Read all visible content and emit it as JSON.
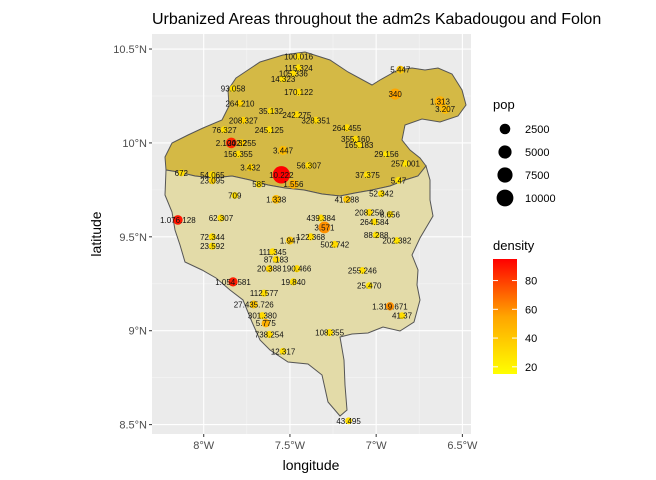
{
  "chart_data": {
    "type": "scatter",
    "title": "Urbanized Areas throughout the adm2s Kabadougou and Folon",
    "xlabel": "longitude",
    "ylabel": "latitude",
    "xlim": [
      -8.3,
      -6.45
    ],
    "ylim": [
      8.45,
      10.58
    ],
    "x_ticks": [
      -8,
      -7.5,
      -7,
      -6.5
    ],
    "x_tick_labels": [
      "8°W",
      "7.5°W",
      "7°W",
      "6.5°W"
    ],
    "y_ticks": [
      8.5,
      9,
      9.5,
      10,
      10.5
    ],
    "y_tick_labels": [
      "8.5°N",
      "9°N",
      "9.5°N",
      "10°N",
      "10.5°N"
    ],
    "grid": true,
    "regions": [
      {
        "name": "north",
        "fill": "#d4b945"
      },
      {
        "name": "south",
        "fill": "#e3dba8"
      }
    ],
    "legend_pop": {
      "title": "pop",
      "breaks": [
        2500,
        5000,
        7500,
        10000
      ],
      "labels": [
        "2500",
        "5000",
        "7500",
        "10000"
      ]
    },
    "legend_density": {
      "title": "density",
      "breaks": [
        20,
        40,
        60,
        80
      ],
      "labels": [
        "20",
        "40",
        "60",
        "80"
      ],
      "range": [
        15,
        95
      ],
      "color_low": "#ffff00",
      "color_mid": "#ffa500",
      "color_high": "#ff0000"
    },
    "points": [
      {
        "label": "100.016",
        "x": -7.45,
        "y": 10.46,
        "pop": 400,
        "density": 30
      },
      {
        "label": "115.324",
        "x": -7.45,
        "y": 10.4,
        "pop": 400,
        "density": 30
      },
      {
        "label": "105.336",
        "x": -7.48,
        "y": 10.37,
        "pop": 400,
        "density": 30
      },
      {
        "label": "14.323",
        "x": -7.54,
        "y": 10.34,
        "pop": 400,
        "density": 30
      },
      {
        "label": "93.058",
        "x": -7.83,
        "y": 10.29,
        "pop": 400,
        "density": 30
      },
      {
        "label": "170.122",
        "x": -7.45,
        "y": 10.27,
        "pop": 500,
        "density": 32
      },
      {
        "label": "264.210",
        "x": -7.79,
        "y": 10.21,
        "pop": 500,
        "density": 35
      },
      {
        "label": "35.132",
        "x": -7.61,
        "y": 10.17,
        "pop": 400,
        "density": 30
      },
      {
        "label": "242.275",
        "x": -7.46,
        "y": 10.15,
        "pop": 500,
        "density": 32
      },
      {
        "label": "328.351",
        "x": -7.35,
        "y": 10.12,
        "pop": 500,
        "density": 32
      },
      {
        "label": "208.327",
        "x": -7.77,
        "y": 10.12,
        "pop": 500,
        "density": 35
      },
      {
        "label": "76.327",
        "x": -7.88,
        "y": 10.07,
        "pop": 500,
        "density": 30
      },
      {
        "label": "245.125",
        "x": -7.62,
        "y": 10.07,
        "pop": 500,
        "density": 30
      },
      {
        "label": "264.455",
        "x": -7.17,
        "y": 10.08,
        "pop": 500,
        "density": 32
      },
      {
        "label": "355.160",
        "x": -7.12,
        "y": 10.02,
        "pop": 500,
        "density": 32
      },
      {
        "label": "165.183",
        "x": -7.1,
        "y": 9.99,
        "pop": 500,
        "density": 30
      },
      {
        "label": "2.104.32",
        "x": -7.84,
        "y": 10.0,
        "pop": 2500,
        "density": 85
      },
      {
        "label": "202.255",
        "x": -7.78,
        "y": 10.0,
        "pop": 600,
        "density": 38
      },
      {
        "label": "156.355",
        "x": -7.8,
        "y": 9.94,
        "pop": 500,
        "density": 32
      },
      {
        "label": "3.447",
        "x": -7.54,
        "y": 9.96,
        "pop": 1500,
        "density": 45
      },
      {
        "label": "29.156",
        "x": -6.94,
        "y": 9.94,
        "pop": 400,
        "density": 28
      },
      {
        "label": "257.001",
        "x": -6.83,
        "y": 9.89,
        "pop": 400,
        "density": 28
      },
      {
        "label": "56.307",
        "x": -7.39,
        "y": 9.88,
        "pop": 500,
        "density": 32
      },
      {
        "label": "54.065",
        "x": -7.95,
        "y": 9.83,
        "pop": 500,
        "density": 30
      },
      {
        "label": "672",
        "x": -8.13,
        "y": 9.84,
        "pop": 400,
        "density": 30
      },
      {
        "label": "3.432",
        "x": -7.73,
        "y": 9.87,
        "pop": 600,
        "density": 35
      },
      {
        "label": "10.222",
        "x": -7.55,
        "y": 9.83,
        "pop": 11000,
        "density": 95
      },
      {
        "label": "37.375",
        "x": -7.05,
        "y": 9.83,
        "pop": 500,
        "density": 30
      },
      {
        "label": "5.47",
        "x": -6.87,
        "y": 9.8,
        "pop": 400,
        "density": 28
      },
      {
        "label": "23.095",
        "x": -7.95,
        "y": 9.8,
        "pop": 600,
        "density": 35
      },
      {
        "label": "585",
        "x": -7.68,
        "y": 9.78,
        "pop": 500,
        "density": 30
      },
      {
        "label": "1.556",
        "x": -7.48,
        "y": 9.78,
        "pop": 1500,
        "density": 50
      },
      {
        "label": "52.342",
        "x": -6.97,
        "y": 9.73,
        "pop": 400,
        "density": 30
      },
      {
        "label": "709",
        "x": -7.82,
        "y": 9.72,
        "pop": 400,
        "density": 30
      },
      {
        "label": "1.338",
        "x": -7.58,
        "y": 9.7,
        "pop": 1200,
        "density": 45
      },
      {
        "label": "41.288",
        "x": -7.17,
        "y": 9.7,
        "pop": 600,
        "density": 40
      },
      {
        "label": "208.250",
        "x": -7.04,
        "y": 9.63,
        "pop": 500,
        "density": 32
      },
      {
        "label": "8.656",
        "x": -6.92,
        "y": 9.62,
        "pop": 400,
        "density": 30
      },
      {
        "label": "1.076.128",
        "x": -8.15,
        "y": 9.59,
        "pop": 1800,
        "density": 90
      },
      {
        "label": "62.307",
        "x": -7.9,
        "y": 9.6,
        "pop": 500,
        "density": 30
      },
      {
        "label": "439.384",
        "x": -7.32,
        "y": 9.6,
        "pop": 500,
        "density": 32
      },
      {
        "label": "3.571",
        "x": -7.3,
        "y": 9.55,
        "pop": 3500,
        "density": 60
      },
      {
        "label": "264.584",
        "x": -7.01,
        "y": 9.58,
        "pop": 400,
        "density": 30
      },
      {
        "label": "88.288",
        "x": -7.0,
        "y": 9.51,
        "pop": 400,
        "density": 28
      },
      {
        "label": "72.344",
        "x": -7.95,
        "y": 9.5,
        "pop": 500,
        "density": 30
      },
      {
        "label": "202.382",
        "x": -6.88,
        "y": 9.48,
        "pop": 400,
        "density": 28
      },
      {
        "label": "23.592",
        "x": -7.95,
        "y": 9.45,
        "pop": 500,
        "density": 30
      },
      {
        "label": "502.742",
        "x": -7.24,
        "y": 9.46,
        "pop": 500,
        "density": 32
      },
      {
        "label": "1.947",
        "x": -7.5,
        "y": 9.48,
        "pop": 800,
        "density": 40
      },
      {
        "label": "122.368",
        "x": -7.38,
        "y": 9.5,
        "pop": 500,
        "density": 32
      },
      {
        "label": "111.345",
        "x": -7.6,
        "y": 9.42,
        "pop": 500,
        "density": 30
      },
      {
        "label": "87.183",
        "x": -7.58,
        "y": 9.38,
        "pop": 500,
        "density": 32
      },
      {
        "label": "20.388",
        "x": -7.62,
        "y": 9.33,
        "pop": 500,
        "density": 35
      },
      {
        "label": "190.466",
        "x": -7.46,
        "y": 9.33,
        "pop": 500,
        "density": 32
      },
      {
        "label": "255.246",
        "x": -7.08,
        "y": 9.32,
        "pop": 400,
        "density": 30
      },
      {
        "label": "1.054.581",
        "x": -7.83,
        "y": 9.26,
        "pop": 1500,
        "density": 88
      },
      {
        "label": "19.840",
        "x": -7.48,
        "y": 9.26,
        "pop": 500,
        "density": 30
      },
      {
        "label": "25.470",
        "x": -7.04,
        "y": 9.24,
        "pop": 400,
        "density": 28
      },
      {
        "label": "112.577",
        "x": -7.65,
        "y": 9.2,
        "pop": 500,
        "density": 30
      },
      {
        "label": "27.435.726",
        "x": -7.71,
        "y": 9.14,
        "pop": 800,
        "density": 40
      },
      {
        "label": "1.319.671",
        "x": -6.92,
        "y": 9.13,
        "pop": 1000,
        "density": 60
      },
      {
        "label": "301.380",
        "x": -7.66,
        "y": 9.08,
        "pop": 500,
        "density": 32
      },
      {
        "label": "41.37",
        "x": -6.85,
        "y": 9.08,
        "pop": 400,
        "density": 30
      },
      {
        "label": "5.775",
        "x": -7.64,
        "y": 9.04,
        "pop": 1000,
        "density": 50
      },
      {
        "label": "108.355",
        "x": -7.27,
        "y": 8.99,
        "pop": 500,
        "density": 30
      },
      {
        "label": "738.254",
        "x": -7.62,
        "y": 8.98,
        "pop": 500,
        "density": 32
      },
      {
        "label": "12.317",
        "x": -7.54,
        "y": 8.89,
        "pop": 400,
        "density": 30
      },
      {
        "label": "43.495",
        "x": -7.16,
        "y": 8.52,
        "pop": 400,
        "density": 30
      },
      {
        "label": "5.447",
        "x": -6.86,
        "y": 10.39,
        "pop": 800,
        "density": 40
      },
      {
        "label": "340",
        "x": -6.89,
        "y": 10.26,
        "pop": 3000,
        "density": 55
      },
      {
        "label": "1.313",
        "x": -6.63,
        "y": 10.22,
        "pop": 2500,
        "density": 50
      },
      {
        "label": "3.207",
        "x": -6.6,
        "y": 10.18,
        "pop": 1500,
        "density": 45
      }
    ]
  }
}
